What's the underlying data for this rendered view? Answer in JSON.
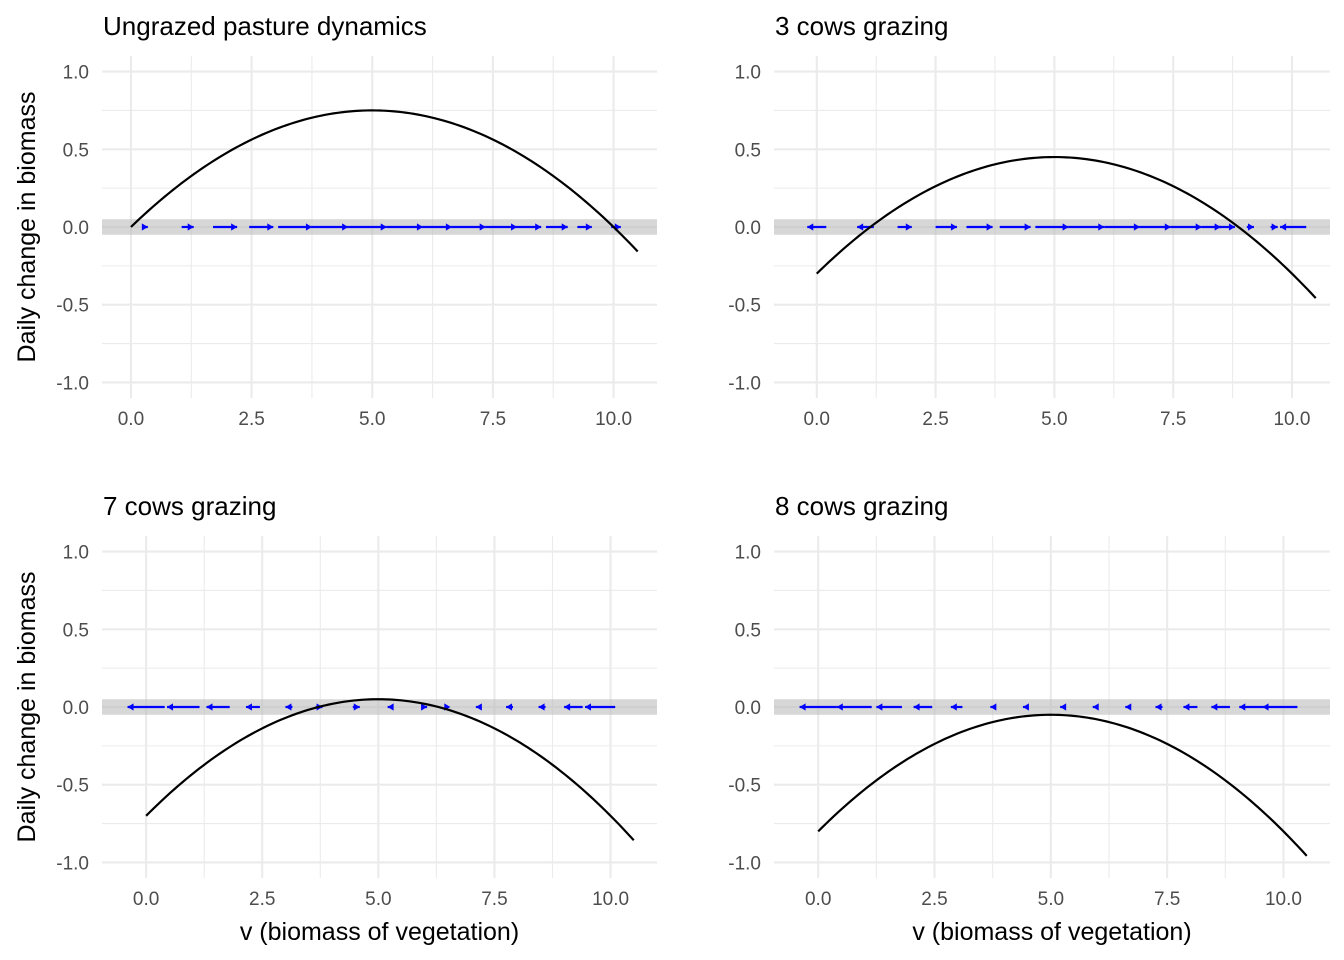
{
  "chart_data": [
    {
      "type": "line",
      "title": "Ungrazed pasture dynamics",
      "xlabel": "",
      "ylabel": "Daily change in biomass",
      "xlim": [
        -0.6,
        10.9
      ],
      "ylim": [
        -1.1,
        1.1
      ],
      "x_ticks": [
        "0.0",
        "2.5",
        "5.0",
        "7.5",
        "10.0"
      ],
      "y_ticks": [
        "-1.0",
        "-0.5",
        "0.0",
        "0.5",
        "1.0"
      ],
      "grid": true,
      "curve": {
        "x_start": 0,
        "x_end": 10.5,
        "vertex_x": 5,
        "vertex_y": 0.75,
        "y_at_0": 0.0
      },
      "zero_band": {
        "y": 0,
        "halfwidth": 0.05
      },
      "flow_arrows": {
        "color": "#0000ff",
        "start_x": [
          0.3,
          1.05,
          1.7,
          2.45,
          3.05,
          3.75,
          4.5,
          5.3,
          6.05,
          6.65,
          7.35,
          8.0,
          8.6,
          9.25,
          9.95
        ],
        "end_x": [
          0.35,
          1.3,
          2.2,
          2.95,
          3.75,
          4.5,
          5.3,
          6.05,
          6.65,
          7.35,
          8.0,
          8.5,
          9.05,
          9.55,
          10.15
        ]
      }
    },
    {
      "type": "line",
      "title": "3 cows grazing",
      "xlabel": "",
      "ylabel": "",
      "xlim": [
        -0.9,
        10.8
      ],
      "ylim": [
        -1.1,
        1.1
      ],
      "x_ticks": [
        "0.0",
        "2.5",
        "5.0",
        "7.5",
        "10.0"
      ],
      "y_ticks": [
        "-1.0",
        "-0.5",
        "0.0",
        "0.5",
        "1.0"
      ],
      "grid": true,
      "curve": {
        "x_start": 0,
        "x_end": 10.5,
        "vertex_x": 5,
        "vertex_y": 0.45,
        "y_at_0": -0.3
      },
      "zero_band": {
        "y": 0,
        "halfwidth": 0.05
      },
      "flow_arrows": {
        "color": "#0000ff",
        "start_x": [
          0.2,
          1.2,
          1.7,
          2.5,
          3.15,
          3.85,
          4.6,
          5.3,
          6.05,
          6.8,
          7.45,
          8.1,
          8.35,
          9.05,
          9.55,
          10.3
        ],
        "end_x": [
          -0.2,
          0.85,
          2.0,
          2.95,
          3.7,
          4.5,
          5.3,
          6.05,
          6.8,
          7.45,
          8.1,
          8.5,
          8.8,
          9.2,
          9.7,
          9.75
        ]
      }
    },
    {
      "type": "line",
      "title": "7 cows grazing",
      "xlabel": "v (biomass of vegetation)",
      "ylabel": "Daily change in biomass",
      "xlim": [
        -0.95,
        11.0
      ],
      "ylim": [
        -1.1,
        1.1
      ],
      "x_ticks": [
        "0.0",
        "2.5",
        "5.0",
        "7.5",
        "10.0"
      ],
      "y_ticks": [
        "-1.0",
        "-0.5",
        "0.0",
        "0.5",
        "1.0"
      ],
      "grid": true,
      "curve": {
        "x_start": 0,
        "x_end": 10.5,
        "vertex_x": 5,
        "vertex_y": 0.05,
        "y_at_0": -0.7
      },
      "zero_band": {
        "y": 0,
        "halfwidth": 0.05
      },
      "flow_arrows": {
        "color": "#0000ff",
        "start_x": [
          0.4,
          1.15,
          1.8,
          2.45,
          3.15,
          3.65,
          4.45,
          5.25,
          5.95,
          6.55,
          7.2,
          7.9,
          8.6,
          9.4,
          10.1
        ],
        "end_x": [
          -0.4,
          0.45,
          1.3,
          2.15,
          3.0,
          3.8,
          4.6,
          5.2,
          6.05,
          6.55,
          7.1,
          7.75,
          8.45,
          9.0,
          9.45
        ]
      }
    },
    {
      "type": "line",
      "title": "8 cows grazing",
      "xlabel": "v (biomass of vegetation)",
      "ylabel": "",
      "xlim": [
        -0.95,
        11.0
      ],
      "ylim": [
        -1.1,
        1.1
      ],
      "x_ticks": [
        "0.0",
        "2.5",
        "5.0",
        "7.5",
        "10.0"
      ],
      "y_ticks": [
        "-1.0",
        "-0.5",
        "0.0",
        "0.5",
        "1.0"
      ],
      "grid": true,
      "curve": {
        "x_start": 0,
        "x_end": 10.5,
        "vertex_x": 5,
        "vertex_y": -0.05,
        "y_at_0": -0.8
      },
      "zero_band": {
        "y": 0,
        "halfwidth": 0.05
      },
      "flow_arrows": {
        "color": "#0000ff",
        "start_x": [
          0.4,
          1.15,
          1.8,
          2.45,
          3.1,
          3.8,
          4.5,
          5.25,
          5.95,
          6.7,
          7.4,
          8.15,
          8.85,
          9.55,
          10.3
        ],
        "end_x": [
          -0.4,
          0.4,
          1.25,
          2.05,
          2.85,
          3.7,
          4.4,
          5.2,
          5.9,
          6.6,
          7.25,
          7.85,
          8.45,
          9.05,
          9.55
        ]
      }
    }
  ]
}
